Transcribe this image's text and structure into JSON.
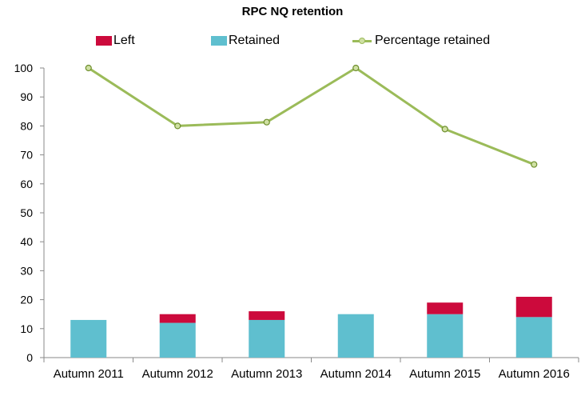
{
  "chart_data": {
    "type": "bar",
    "title": "RPC NQ retention",
    "categories": [
      "Autumn 2011",
      "Autumn 2012",
      "Autumn 2013",
      "Autumn 2014",
      "Autumn 2015",
      "Autumn 2016"
    ],
    "series": [
      {
        "name": "Left",
        "kind": "stacked-bar",
        "color": "#cc0a3c",
        "values": [
          0,
          3,
          3,
          0,
          4,
          7
        ]
      },
      {
        "name": "Retained",
        "kind": "stacked-bar",
        "color": "#5fbfcf",
        "values": [
          13,
          12,
          13,
          15,
          15,
          14
        ]
      },
      {
        "name": "Percentage retained",
        "kind": "line",
        "color": "#9bbb59",
        "values": [
          100,
          80,
          81.3,
          100,
          78.9,
          66.7
        ]
      }
    ],
    "ylim": [
      0,
      100
    ],
    "yticks": [
      "0",
      "10",
      "20",
      "30",
      "40",
      "50",
      "60",
      "70",
      "80",
      "90",
      "100"
    ],
    "grid": false,
    "legend_position": "top"
  }
}
